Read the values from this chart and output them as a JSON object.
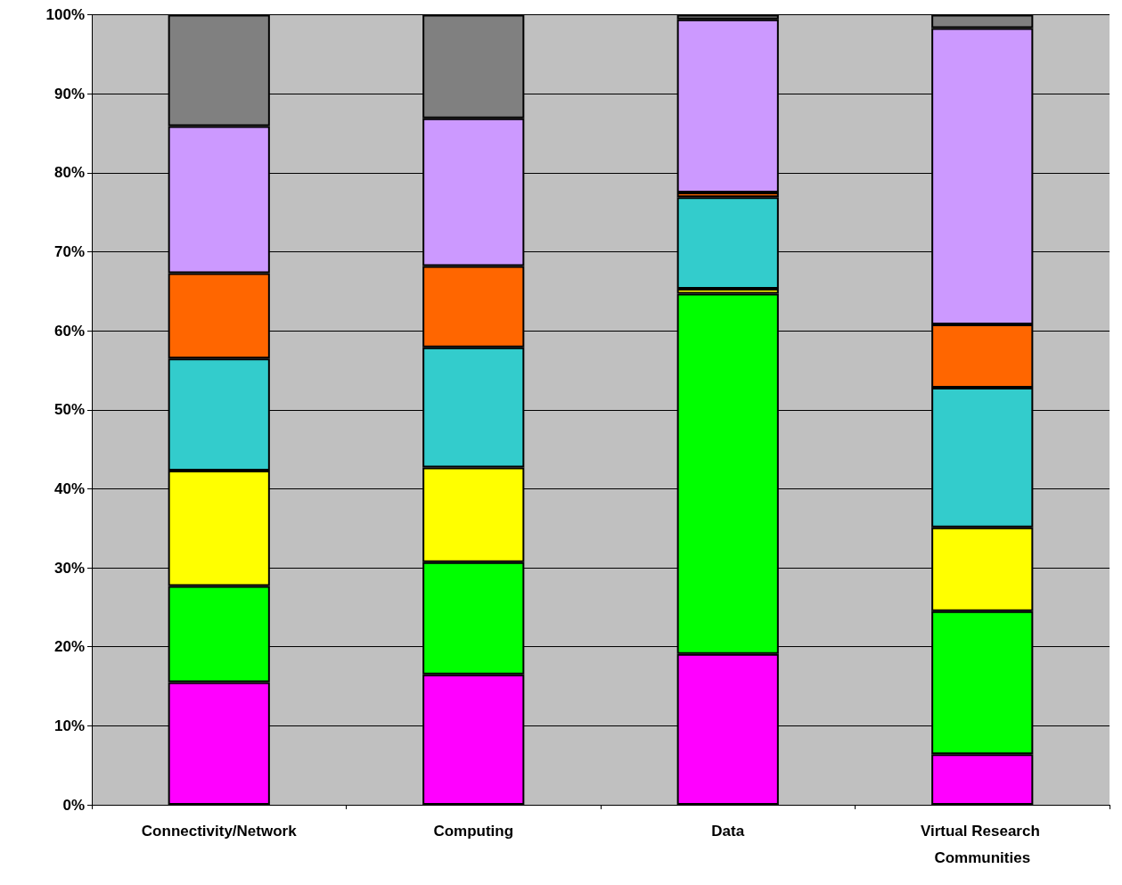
{
  "chart_data": {
    "type": "bar",
    "stacked": true,
    "categories": [
      "Connectivity/Network",
      "Computing",
      "Data",
      "Virtual Research Communities"
    ],
    "series": [
      {
        "color": "#ff00ff",
        "values": [
          15.5,
          16.5,
          19.1,
          6.4
        ]
      },
      {
        "color": "#00ff00",
        "values": [
          12.2,
          14.2,
          45.6,
          18.1
        ]
      },
      {
        "color": "#ffff00",
        "values": [
          14.6,
          12.0,
          0.6,
          10.6
        ]
      },
      {
        "color": "#33cccc",
        "values": [
          14.2,
          15.2,
          11.6,
          17.7
        ]
      },
      {
        "color": "#ff6600",
        "values": [
          10.8,
          10.3,
          0.6,
          8.0
        ]
      },
      {
        "color": "#cc99ff",
        "values": [
          18.6,
          18.7,
          21.9,
          37.5
        ]
      },
      {
        "color": "#808080",
        "values": [
          14.1,
          13.1,
          0.6,
          1.7
        ]
      }
    ],
    "ylim": [
      0,
      100
    ],
    "yticks": [
      {
        "value": 0,
        "label": "0%"
      },
      {
        "value": 10,
        "label": "10%"
      },
      {
        "value": 20,
        "label": "20%"
      },
      {
        "value": 30,
        "label": "30%"
      },
      {
        "value": 40,
        "label": "40%"
      },
      {
        "value": 50,
        "label": "50%"
      },
      {
        "value": 60,
        "label": "60%"
      },
      {
        "value": 70,
        "label": "70%"
      },
      {
        "value": 80,
        "label": "80%"
      },
      {
        "value": 90,
        "label": "90%"
      },
      {
        "value": 100,
        "label": "100%"
      }
    ],
    "grid": "y"
  }
}
